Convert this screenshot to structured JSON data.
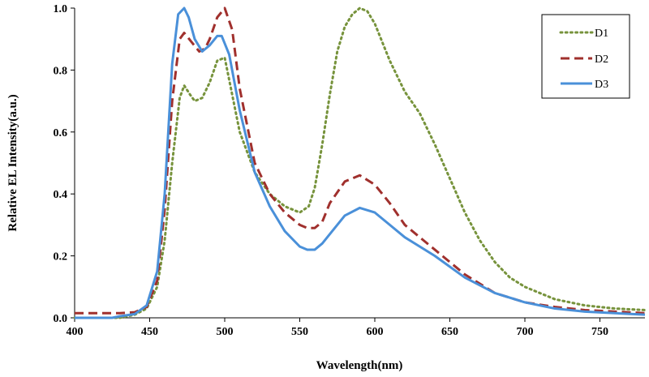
{
  "chart_data": {
    "type": "line",
    "title": "",
    "xlabel": "Wavelength(nm)",
    "ylabel": "Relative EL Intensity(a.u.)",
    "xlim": [
      400,
      780
    ],
    "ylim": [
      0,
      1.0
    ],
    "xticks": [
      400,
      450,
      500,
      550,
      600,
      650,
      700,
      750
    ],
    "yticks": [
      0,
      0.2,
      0.4,
      0.6,
      0.8,
      1.0
    ],
    "xtick_labels": [
      "400",
      "450",
      "500",
      "550",
      "600",
      "650",
      "700",
      "750"
    ],
    "ytick_labels": [
      "0.0",
      "0.2",
      "0.4",
      "0.6",
      "0.8",
      "1.0"
    ],
    "grid": false,
    "legend_position": "top-right",
    "series": [
      {
        "name": "D1",
        "color": "#77933C",
        "style": "dotted",
        "x": [
          400,
          420,
          430,
          440,
          448,
          455,
          460,
          465,
          470,
          473,
          477,
          480,
          485,
          490,
          495,
          500,
          505,
          510,
          520,
          530,
          540,
          550,
          556,
          560,
          565,
          570,
          575,
          580,
          585,
          590,
          595,
          600,
          610,
          620,
          630,
          640,
          650,
          660,
          670,
          680,
          690,
          700,
          720,
          740,
          760,
          780
        ],
        "y": [
          0.0,
          0.0,
          0.0,
          0.01,
          0.03,
          0.1,
          0.25,
          0.5,
          0.71,
          0.75,
          0.72,
          0.7,
          0.71,
          0.76,
          0.83,
          0.84,
          0.72,
          0.6,
          0.47,
          0.4,
          0.36,
          0.34,
          0.36,
          0.42,
          0.56,
          0.72,
          0.86,
          0.94,
          0.98,
          1.0,
          0.99,
          0.95,
          0.83,
          0.73,
          0.66,
          0.56,
          0.45,
          0.34,
          0.25,
          0.18,
          0.13,
          0.1,
          0.06,
          0.04,
          0.03,
          0.025
        ]
      },
      {
        "name": "D2",
        "color": "#A0302D",
        "style": "dashed",
        "x": [
          400,
          420,
          430,
          440,
          448,
          455,
          460,
          465,
          470,
          473,
          478,
          483,
          487,
          490,
          495,
          500,
          505,
          510,
          520,
          530,
          540,
          550,
          555,
          560,
          565,
          570,
          580,
          590,
          600,
          610,
          620,
          640,
          660,
          680,
          700,
          720,
          740,
          760,
          780
        ],
        "y": [
          0.015,
          0.015,
          0.015,
          0.018,
          0.035,
          0.12,
          0.35,
          0.7,
          0.9,
          0.92,
          0.89,
          0.86,
          0.87,
          0.9,
          0.97,
          1.0,
          0.93,
          0.74,
          0.5,
          0.4,
          0.34,
          0.3,
          0.29,
          0.29,
          0.31,
          0.37,
          0.44,
          0.46,
          0.43,
          0.37,
          0.3,
          0.22,
          0.14,
          0.08,
          0.05,
          0.035,
          0.025,
          0.02,
          0.015
        ]
      },
      {
        "name": "D3",
        "color": "#4A90D9",
        "style": "solid",
        "x": [
          400,
          425,
          430,
          440,
          448,
          455,
          460,
          465,
          469,
          473,
          476,
          480,
          485,
          490,
          495,
          498,
          503,
          510,
          520,
          530,
          540,
          550,
          555,
          560,
          565,
          570,
          580,
          590,
          600,
          610,
          620,
          640,
          660,
          680,
          700,
          720,
          740,
          760,
          780
        ],
        "y": [
          0.0,
          0.0,
          0.005,
          0.012,
          0.04,
          0.15,
          0.4,
          0.82,
          0.98,
          1.0,
          0.97,
          0.9,
          0.86,
          0.88,
          0.91,
          0.91,
          0.85,
          0.67,
          0.47,
          0.36,
          0.28,
          0.23,
          0.22,
          0.22,
          0.24,
          0.27,
          0.33,
          0.355,
          0.34,
          0.3,
          0.26,
          0.2,
          0.13,
          0.08,
          0.05,
          0.03,
          0.02,
          0.015,
          0.01
        ]
      }
    ]
  }
}
